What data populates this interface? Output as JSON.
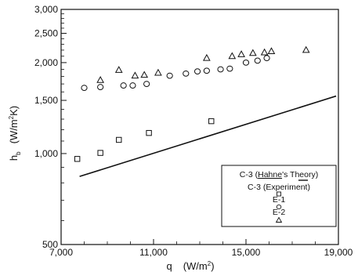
{
  "chart_data": {
    "type": "scatter",
    "x_scale": "linear",
    "y_scale": "log",
    "xlim": [
      7000,
      19000
    ],
    "ylim": [
      500,
      3000
    ],
    "x_ticks": [
      "7,000",
      "11,000",
      "15,000",
      "19,000"
    ],
    "y_ticks": [
      "500",
      "1,000",
      "1,500",
      "2,000",
      "2,500",
      "3,000"
    ],
    "xlabel": "q",
    "xunit_base": "(W/m",
    "xunit_sup": "2",
    "xunit_close": ")",
    "ylabel_h": "h",
    "ylabel_sub": "b",
    "ylabel_unit": "(W/m",
    "ylabel_unit_sup": "2",
    "ylabel_unit_tail": "K)",
    "series": [
      {
        "name": "C-3 (Hahne's Theory)",
        "marker": "line",
        "points": [
          [
            7800,
            840
          ],
          [
            18900,
            1550
          ]
        ]
      },
      {
        "name": "C-3 (Experiment)",
        "marker": "square",
        "points": [
          [
            7700,
            960
          ],
          [
            8700,
            1005
          ],
          [
            9500,
            1110
          ],
          [
            10800,
            1170
          ],
          [
            13500,
            1280
          ]
        ]
      },
      {
        "name": "E-1",
        "marker": "circle",
        "points": [
          [
            8000,
            1650
          ],
          [
            8700,
            1660
          ],
          [
            9700,
            1680
          ],
          [
            10100,
            1680
          ],
          [
            10700,
            1700
          ],
          [
            11700,
            1810
          ],
          [
            12400,
            1840
          ],
          [
            12900,
            1870
          ],
          [
            13300,
            1880
          ],
          [
            13900,
            1900
          ],
          [
            14300,
            1910
          ],
          [
            15000,
            2000
          ],
          [
            15500,
            2030
          ],
          [
            15900,
            2070
          ]
        ]
      },
      {
        "name": "E-2",
        "marker": "triangle",
        "points": [
          [
            8700,
            1750
          ],
          [
            9500,
            1890
          ],
          [
            10200,
            1810
          ],
          [
            10600,
            1820
          ],
          [
            11200,
            1850
          ],
          [
            13300,
            2070
          ],
          [
            14400,
            2100
          ],
          [
            14800,
            2130
          ],
          [
            15300,
            2150
          ],
          [
            15800,
            2160
          ],
          [
            16100,
            2180
          ],
          [
            17600,
            2200
          ]
        ]
      }
    ],
    "legend": {
      "placement": "bottom-right",
      "lines": [
        {
          "prefix": "C-3 (",
          "underlined": "Hahne",
          "suffix": "'s Theory)"
        },
        {
          "prefix": "C-3 (Experiment)",
          "underlined": "",
          "suffix": ""
        },
        {
          "prefix": "E-1",
          "underlined": "",
          "suffix": ""
        },
        {
          "prefix": "E-2",
          "underlined": "",
          "suffix": ""
        }
      ]
    }
  }
}
